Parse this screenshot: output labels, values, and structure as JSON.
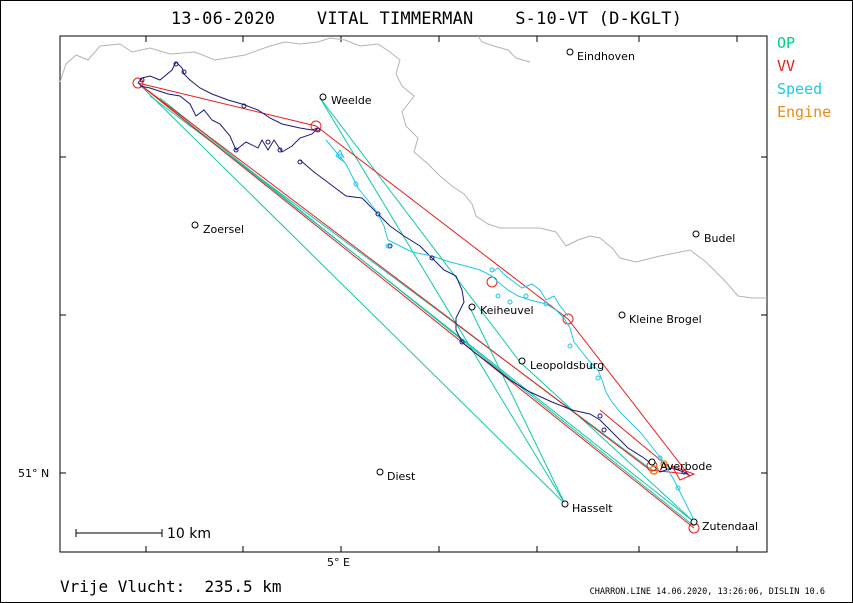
{
  "title": "13-06-2020    VITAL TIMMERMAN    S-10-VT (D-KGLT)",
  "legend": [
    {
      "label": "OP",
      "color": "#00d080"
    },
    {
      "label": "VV",
      "color": "#e8201c"
    },
    {
      "label": "Speed",
      "color": "#1ec8e8"
    },
    {
      "label": "Engine",
      "color": "#e88a1c"
    }
  ],
  "towns": [
    {
      "name": "Eindhoven"
    },
    {
      "name": "Weelde"
    },
    {
      "name": "Zoersel"
    },
    {
      "name": "Budel"
    },
    {
      "name": "Keiheuvel"
    },
    {
      "name": "Kleine Brogel"
    },
    {
      "name": "Leopoldsburg"
    },
    {
      "name": "Averbode"
    },
    {
      "name": "Diest"
    },
    {
      "name": "Hasselt"
    },
    {
      "name": "Zutendaal"
    }
  ],
  "axes": {
    "lat_label": "51° N",
    "lon_label": "5° E"
  },
  "scale_bar": {
    "label": "10 km"
  },
  "free_flight": "Vrije Vlucht:  235.5 km",
  "footer": "CHARRON.LINE 14.06.2020, 13:26:06, DISLIN 10.6",
  "colors": {
    "border_line": "#b4b4b4",
    "track": "#1a1a7a",
    "track_speed": "#1ec8e8",
    "op_leg": "#10c8a8",
    "vv_leg": "#e8201c"
  }
}
